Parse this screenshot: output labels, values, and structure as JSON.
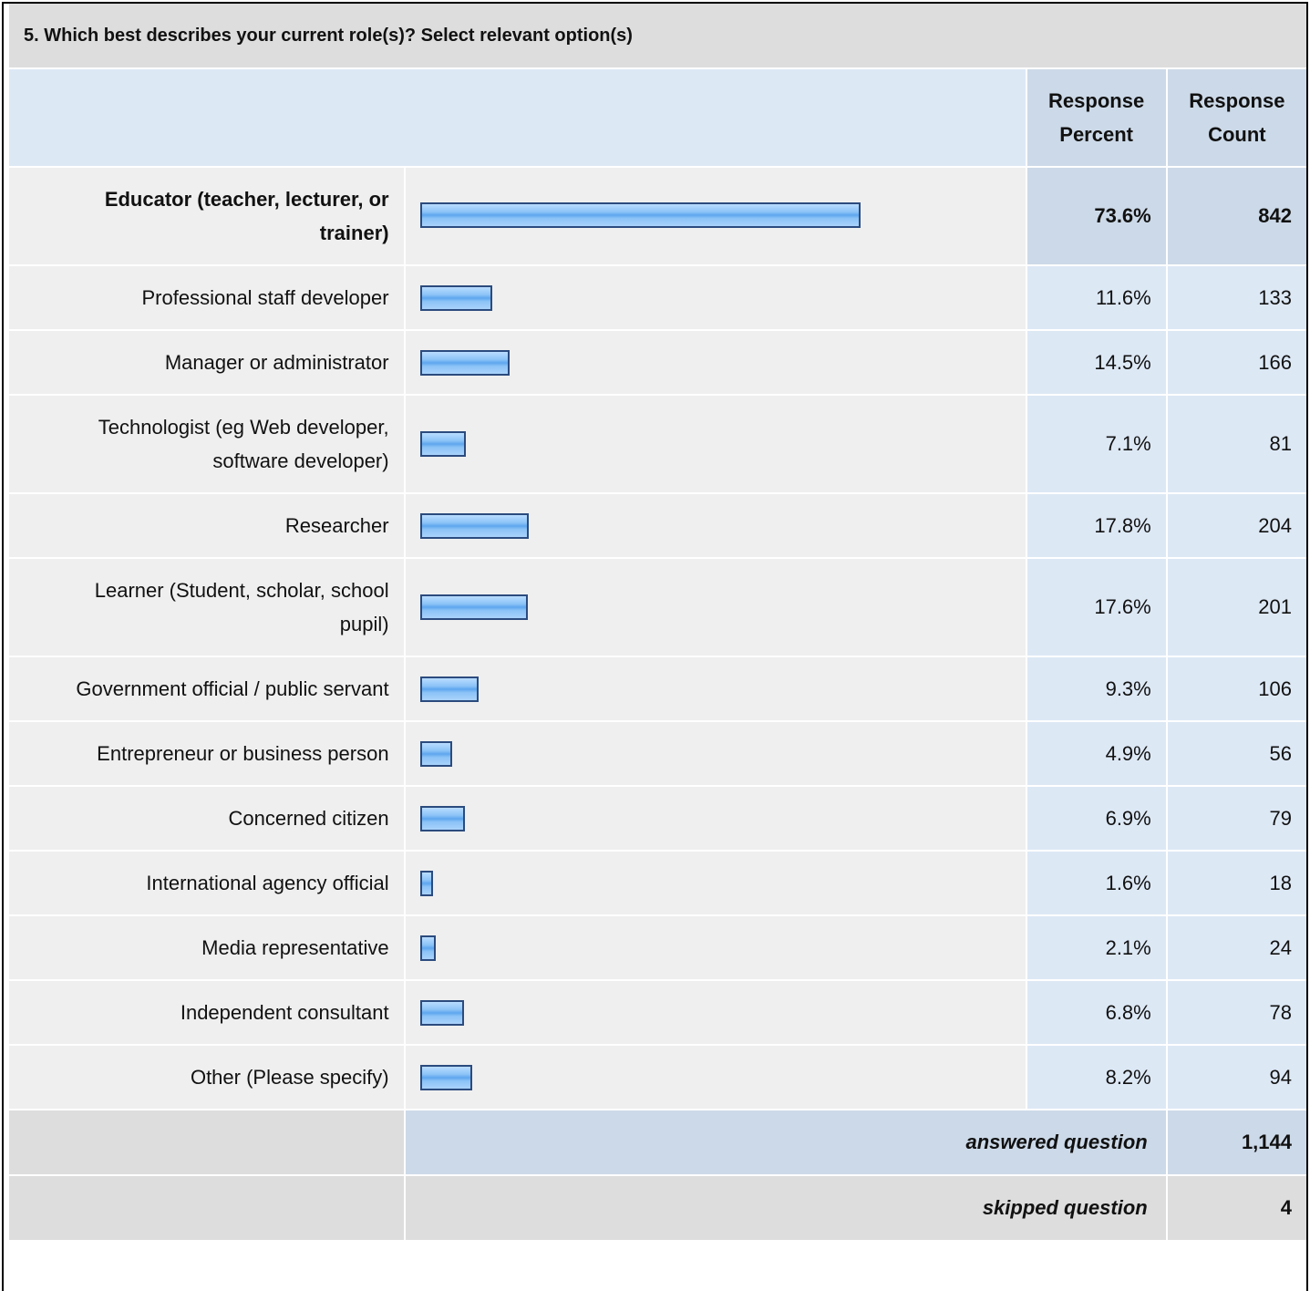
{
  "title": "5. Which best describes your current role(s)? Select relevant option(s)",
  "table": {
    "headers": [
      "Response Percent",
      "Response Count"
    ],
    "rows": [
      {
        "label": "Educator (teacher, lecturer, or trainer)",
        "percent": 73.6,
        "percent_label": "73.6%",
        "count": 842
      },
      {
        "label": "Professional staff developer",
        "percent": 11.6,
        "percent_label": "11.6%",
        "count": 133
      },
      {
        "label": "Manager or administrator",
        "percent": 14.5,
        "percent_label": "14.5%",
        "count": 166
      },
      {
        "label": "Technologist (eg Web developer, software developer)",
        "percent": 7.1,
        "percent_label": "7.1%",
        "count": 81
      },
      {
        "label": "Researcher",
        "percent": 17.8,
        "percent_label": "17.8%",
        "count": 204
      },
      {
        "label": "Learner (Student, scholar, school pupil)",
        "percent": 17.6,
        "percent_label": "17.6%",
        "count": 201
      },
      {
        "label": "Government official / public servant",
        "percent": 9.3,
        "percent_label": "9.3%",
        "count": 106
      },
      {
        "label": "Entrepreneur or business person",
        "percent": 4.9,
        "percent_label": "4.9%",
        "count": 56
      },
      {
        "label": "Concerned citizen",
        "percent": 6.9,
        "percent_label": "6.9%",
        "count": 79
      },
      {
        "label": "International agency official",
        "percent": 1.6,
        "percent_label": "1.6%",
        "count": 18
      },
      {
        "label": "Media representative",
        "percent": 2.1,
        "percent_label": "2.1%",
        "count": 24
      },
      {
        "label": "Independent consultant",
        "percent": 6.8,
        "percent_label": "6.8%",
        "count": 78
      },
      {
        "label": "Other (Please specify)",
        "percent": 8.2,
        "percent_label": "8.2%",
        "count": 94
      }
    ],
    "answered": {
      "label": "answered question",
      "value": 1144,
      "value_label": "1,144"
    },
    "skipped": {
      "label": "skipped question",
      "value": 4
    }
  }
}
